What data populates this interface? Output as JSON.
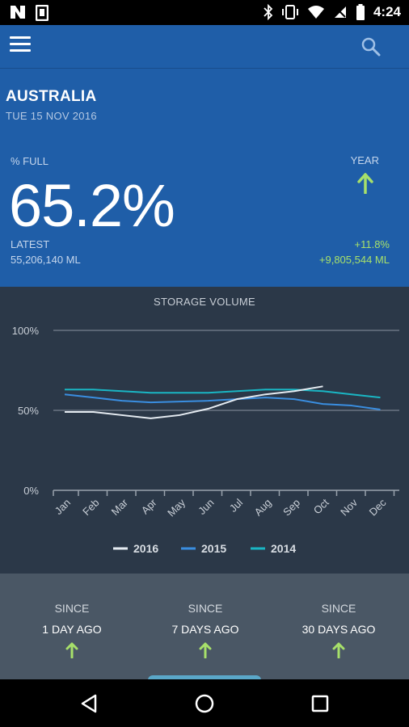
{
  "status_bar": {
    "time": "4:24",
    "icons": [
      "n-notification-icon",
      "image-notification-icon",
      "bluetooth-icon",
      "vibrate-icon",
      "wifi-icon",
      "no-sim-icon",
      "battery-icon"
    ]
  },
  "app_bar": {
    "menu_icon": "hamburger-menu-icon",
    "search_icon": "search-icon"
  },
  "hero": {
    "country": "AUSTRALIA",
    "date": "TUE 15 NOV 2016",
    "percent_label": "% FULL",
    "percent_value": "65.2%",
    "latest_label": "LATEST",
    "latest_value": "55,206,140 ML",
    "year_label": "YEAR",
    "year_change_pct": "+11.8%",
    "year_change_abs": "+9,805,544 ML",
    "accent_color": "#a7e06a"
  },
  "chart_data": {
    "type": "line",
    "title": "STORAGE VOLUME",
    "categories": [
      "Jan",
      "Feb",
      "Mar",
      "Apr",
      "May",
      "Jun",
      "Jul",
      "Aug",
      "Sep",
      "Oct",
      "Nov",
      "Dec"
    ],
    "y_ticks": [
      "100%",
      "50%",
      "0%"
    ],
    "ylim": [
      0,
      100
    ],
    "grid": true,
    "legend_position": "bottom",
    "series": [
      {
        "name": "2016",
        "color": "#e6ecf2",
        "values": [
          49,
          49,
          47,
          45,
          47,
          51,
          57,
          60,
          62,
          65,
          null,
          null
        ]
      },
      {
        "name": "2015",
        "color": "#3a8ee0",
        "values": [
          60,
          58,
          56,
          55,
          55.5,
          56,
          57,
          58,
          57,
          54,
          53,
          50.5
        ]
      },
      {
        "name": "2014",
        "color": "#1ab6c4",
        "values": [
          63,
          63,
          62,
          61,
          61,
          61,
          62,
          63,
          63,
          62,
          60,
          58
        ]
      }
    ]
  },
  "since": [
    {
      "label": "SINCE",
      "value": "1 DAY AGO"
    },
    {
      "label": "SINCE",
      "value": "7 DAYS AGO"
    },
    {
      "label": "SINCE",
      "value": "30 DAYS AGO"
    }
  ],
  "nav_bar": {
    "icons": [
      "back-icon",
      "home-icon",
      "recents-icon"
    ]
  }
}
